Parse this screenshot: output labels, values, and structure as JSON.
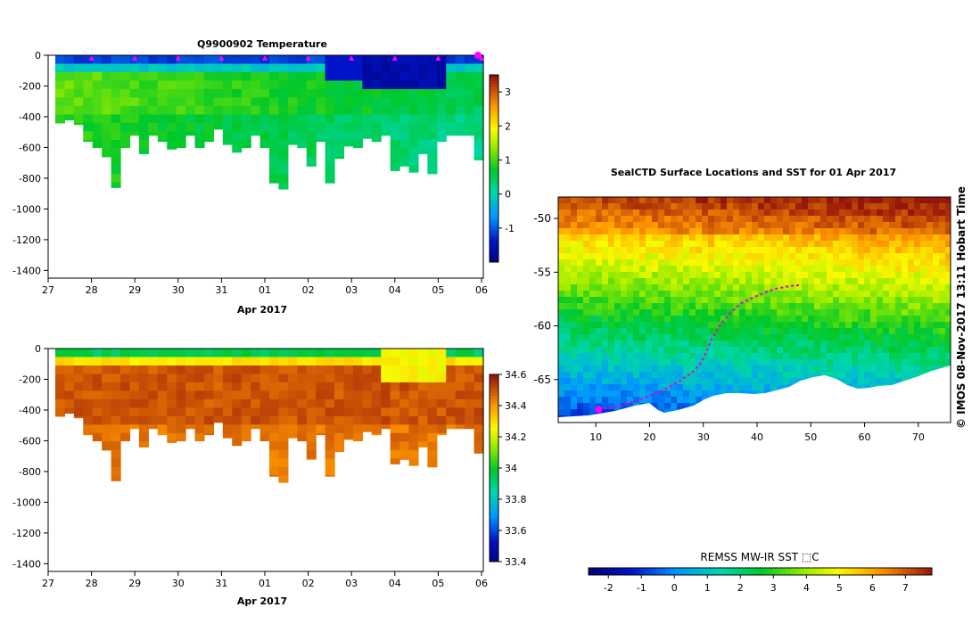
{
  "chart_data": [
    {
      "id": "temperature",
      "type": "heatmap",
      "title": "Q9900902  Temperature",
      "xlabel": "Apr 2017",
      "ylabel": "",
      "ylim": [
        -1450,
        0
      ],
      "y_ticks": [
        0,
        -200,
        -400,
        -600,
        -800,
        -1000,
        -1200,
        -1400
      ],
      "x_ticks": [
        "27",
        "28",
        "29",
        "30",
        "31",
        "01",
        "02",
        "03",
        "04",
        "05",
        "06"
      ],
      "colorbar_ticks": [
        3,
        2,
        1,
        0,
        -1
      ],
      "colorbar_range": [
        -2,
        3.5
      ],
      "profile_markers": "magenta triangles at each day",
      "profile_depths": [
        -440,
        -420,
        -450,
        -560,
        -600,
        -660,
        -860,
        -600,
        -520,
        -640,
        -520,
        -560,
        -610,
        -600,
        -520,
        -600,
        -560,
        -480,
        -580,
        -630,
        -600,
        -520,
        -600,
        -830,
        -870,
        -580,
        -600,
        -720,
        -560,
        -830,
        -670,
        -590,
        -600,
        -540,
        -560,
        -520,
        -750,
        -720,
        -760,
        -640,
        -770,
        -560,
        -520,
        -520,
        -520,
        -680
      ]
    },
    {
      "id": "salinity",
      "type": "heatmap",
      "title": "",
      "xlabel": "Apr 2017",
      "ylim": [
        -1450,
        0
      ],
      "y_ticks": [
        0,
        -200,
        -400,
        -600,
        -800,
        -1000,
        -1200,
        -1400
      ],
      "x_ticks": [
        "27",
        "28",
        "29",
        "30",
        "31",
        "01",
        "02",
        "03",
        "04",
        "05",
        "06"
      ],
      "colorbar_ticks": [
        "34.6",
        "34.4",
        "34.2",
        "34",
        "33.8",
        "33.6",
        "33.4"
      ],
      "colorbar_range": [
        33.4,
        34.6
      ]
    },
    {
      "id": "sst-map",
      "type": "heatmap",
      "title": "SealCTD Surface Locations and SST for 01 Apr 2017",
      "x_ticks": [
        "10",
        "20",
        "30",
        "40",
        "50",
        "60",
        "70"
      ],
      "y_ticks": [
        "-50",
        "-55",
        "-60",
        "-65"
      ],
      "xlim": [
        3,
        76
      ],
      "ylim": [
        -69,
        -48
      ],
      "colorbar_label": "REMSS MW-IR SST ⬚C",
      "colorbar_ticks": [
        "-2",
        "-1",
        "0",
        "1",
        "2",
        "3",
        "4",
        "5",
        "6",
        "7"
      ],
      "colorbar_range": [
        -2.6,
        7.8
      ],
      "track": [
        [
          10.5,
          -67.8
        ],
        [
          12,
          -67.7
        ],
        [
          14,
          -67.5
        ],
        [
          16,
          -67.2
        ],
        [
          18,
          -66.9
        ],
        [
          20,
          -66.5
        ],
        [
          22,
          -66.1
        ],
        [
          24,
          -65.6
        ],
        [
          26,
          -65
        ],
        [
          28,
          -64.3
        ],
        [
          29.5,
          -63.5
        ],
        [
          30.5,
          -62.5
        ],
        [
          31.5,
          -61.3
        ],
        [
          33,
          -60
        ],
        [
          35,
          -58.8
        ],
        [
          37,
          -57.9
        ],
        [
          40,
          -57.2
        ],
        [
          43,
          -56.6
        ],
        [
          46,
          -56.3
        ],
        [
          48,
          -56.2
        ]
      ],
      "track_start": [
        10.5,
        -67.8
      ],
      "credit": "© IMOS 08-Nov-2017 13:11 Hobart Time"
    }
  ]
}
